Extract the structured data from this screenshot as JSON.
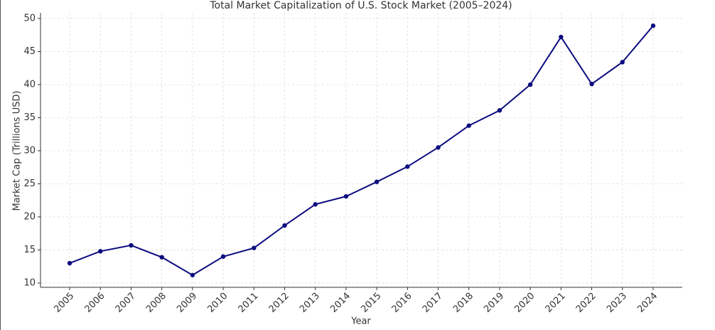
{
  "chart_data": {
    "type": "line",
    "title": "Total Market Capitalization of U.S. Stock Market (2005–2024)",
    "xlabel": "Year",
    "ylabel": "Market Cap (Trillions USD)",
    "x": [
      2005,
      2006,
      2007,
      2008,
      2009,
      2010,
      2011,
      2012,
      2013,
      2014,
      2015,
      2016,
      2017,
      2018,
      2019,
      2020,
      2021,
      2022,
      2023,
      2024
    ],
    "series": [
      {
        "color": "#0c0c80",
        "values": [
          13.0,
          14.8,
          15.7,
          13.9,
          11.2,
          14.0,
          15.3,
          18.7,
          21.9,
          23.1,
          25.3,
          27.6,
          30.5,
          33.8,
          36.1,
          40.0,
          47.2,
          40.1,
          43.4,
          48.9
        ]
      }
    ],
    "xlim": [
      2004.05,
      2024.95
    ],
    "xticks": [
      2005,
      2006,
      2007,
      2008,
      2009,
      2010,
      2011,
      2012,
      2013,
      2014,
      2015,
      2016,
      2017,
      2018,
      2019,
      2020,
      2021,
      2022,
      2023,
      2024
    ],
    "ylim": [
      9.35,
      50.86
    ],
    "yticks": [
      10,
      15,
      20,
      25,
      30,
      35,
      40,
      45,
      50
    ],
    "grid": true
  }
}
